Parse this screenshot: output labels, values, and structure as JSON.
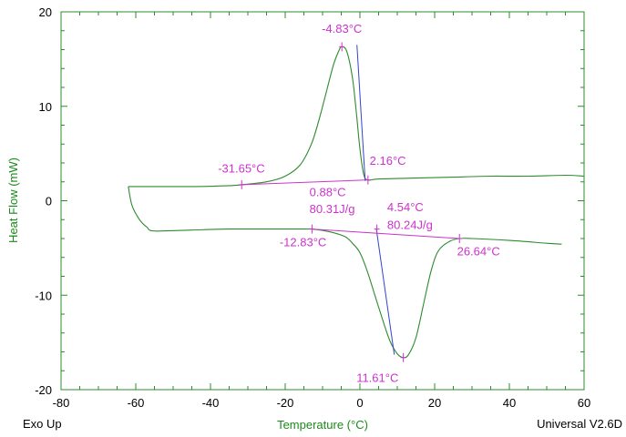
{
  "footer": {
    "left": "Exo Up",
    "right": "Universal V2.6D"
  },
  "chart_data": {
    "type": "line",
    "xlabel": "Temperature (°C)",
    "ylabel": "Heat Flow (mW)",
    "xlim": [
      -80,
      60
    ],
    "ylim": [
      -20,
      20
    ],
    "x_ticks": [
      -80,
      -60,
      -40,
      -20,
      0,
      20,
      40,
      60
    ],
    "y_ticks": [
      -20,
      -10,
      0,
      10,
      20
    ],
    "grid": false,
    "colors": {
      "curve": "#2e8b2e",
      "baseline": "#cc33cc",
      "tangent": "#3344cc",
      "axes": "#2e8b2e",
      "annotation": "#cc33cc"
    },
    "series": [
      {
        "role": "heating",
        "x": [
          -62,
          -55,
          -45,
          -35,
          -31.65,
          -25,
          -20,
          -16,
          -13,
          -11,
          -9,
          -7,
          -5.5,
          -4.83,
          -3.5,
          -2,
          -1,
          0,
          1,
          2.16,
          5,
          15,
          25,
          35,
          45,
          55,
          60
        ],
        "y": [
          1.5,
          1.5,
          1.5,
          1.6,
          1.7,
          2.0,
          2.6,
          3.8,
          6.0,
          8.5,
          11.5,
          14.5,
          16.0,
          16.3,
          15.8,
          13.0,
          9.5,
          5.5,
          2.8,
          2.2,
          2.3,
          2.4,
          2.5,
          2.6,
          2.6,
          2.7,
          2.6
        ]
      },
      {
        "role": "cooling",
        "x": [
          -62,
          -61,
          -59,
          -57,
          -55,
          -45,
          -35,
          -25,
          -15,
          -12.83,
          -8,
          -4,
          -2,
          0,
          2,
          4,
          6,
          8,
          10,
          11.61,
          13,
          15,
          17,
          19,
          21,
          24,
          26.64,
          30,
          40,
          50,
          54
        ],
        "y": [
          1.5,
          -0.5,
          -2.0,
          -2.8,
          -3.2,
          -3.1,
          -3.0,
          -3.0,
          -3.0,
          -3.0,
          -3.3,
          -3.8,
          -4.5,
          -5.5,
          -7.5,
          -10.0,
          -12.5,
          -14.8,
          -16.2,
          -16.6,
          -16.3,
          -14.5,
          -11.0,
          -7.5,
          -5.3,
          -4.3,
          -4.0,
          -4.0,
          -4.2,
          -4.5,
          -4.6
        ]
      }
    ],
    "baselines": [
      {
        "x": [
          -31.65,
          2.16
        ],
        "y": [
          1.7,
          2.2
        ]
      },
      {
        "x": [
          -12.83,
          26.64
        ],
        "y": [
          -3.0,
          -4.0
        ]
      }
    ],
    "tangents": [
      {
        "x": [
          -0.8,
          1.4
        ],
        "y": [
          16.5,
          2.1
        ]
      },
      {
        "x": [
          4.4,
          9.2
        ],
        "y": [
          -3.0,
          -16.3
        ]
      }
    ],
    "markers": [
      {
        "x": -4.83,
        "y": 16.3
      },
      {
        "x": -31.65,
        "y": 1.7
      },
      {
        "x": 2.16,
        "y": 2.2
      },
      {
        "x": -12.83,
        "y": -3.0
      },
      {
        "x": 26.64,
        "y": -4.0
      },
      {
        "x": 11.61,
        "y": -16.6
      },
      {
        "x": 4.54,
        "y": -3.0
      }
    ],
    "annotations": [
      {
        "text": "-4.83°C",
        "x": -4.83,
        "y": 17.8
      },
      {
        "text": "-31.65°C",
        "x": -38,
        "y": 3.0
      },
      {
        "text": "2.16°C",
        "x": 2.6,
        "y": 3.8
      },
      {
        "text": "0.88°C",
        "x": -13.5,
        "y": 0.5
      },
      {
        "text": "80.31J/g",
        "x": -13.5,
        "y": -1.3
      },
      {
        "text": "4.54°C",
        "x": 7.3,
        "y": -1.1
      },
      {
        "text": "80.24J/g",
        "x": 7.3,
        "y": -3.0
      },
      {
        "text": "-12.83°C",
        "x": -21.5,
        "y": -4.8
      },
      {
        "text": "26.64°C",
        "x": 26.0,
        "y": -5.8
      },
      {
        "text": "11.61°C",
        "x": 4.7,
        "y": -19.2
      }
    ]
  }
}
